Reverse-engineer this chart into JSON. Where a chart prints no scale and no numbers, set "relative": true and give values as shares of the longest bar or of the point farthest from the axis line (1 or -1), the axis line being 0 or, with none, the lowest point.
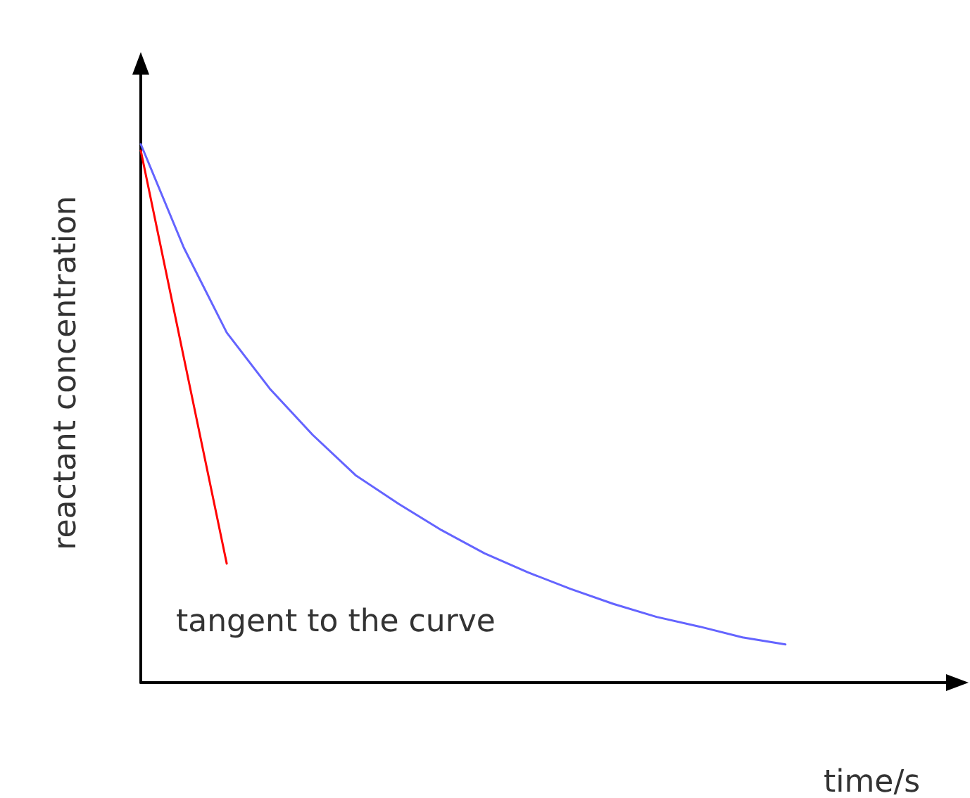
{
  "chart_data": {
    "type": "line",
    "relative": true,
    "xlabel": "time/s",
    "ylabel": "reactant concentration",
    "categories": [
      null,
      null,
      null,
      null,
      null,
      null,
      null,
      null,
      null,
      null,
      null,
      null,
      null,
      null,
      null,
      null,
      null,
      null,
      null,
      null
    ],
    "tick_labels": false,
    "grid": false,
    "marker": "none",
    "line_style": "solid",
    "annotations": [
      "tangent to the curve"
    ],
    "series": [
      {
        "color": "#6464ff",
        "values": [
          1.0,
          0.808,
          0.65,
          0.546,
          0.46,
          0.385,
          0.332,
          0.283,
          0.24,
          0.205,
          0.174,
          0.146,
          0.122,
          0.104,
          0.084,
          0.071,
          null,
          null,
          null,
          null
        ]
      },
      {
        "color": "#ff0000",
        "values": [
          0.988,
          0.604,
          0.221,
          null,
          null,
          null,
          null,
          null,
          null,
          null,
          null,
          null,
          null,
          null,
          null,
          null,
          null,
          null,
          null,
          null
        ]
      }
    ]
  }
}
